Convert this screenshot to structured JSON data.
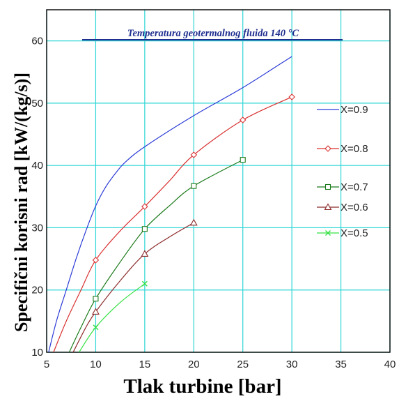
{
  "chart_data": {
    "type": "line",
    "title": "Temperatura geotermalnog fluida 140 °C",
    "xlabel": "Tlak turbine [bar]",
    "ylabel": "Specifični korisni rad [kW/(kg/s)]",
    "xlim": [
      5,
      40
    ],
    "ylim": [
      10,
      65
    ],
    "xticks": [
      "5",
      "10",
      "15",
      "20",
      "25",
      "30",
      "35",
      "40"
    ],
    "yticks": [
      "10",
      "20",
      "30",
      "40",
      "50",
      "60"
    ],
    "grid": true,
    "legend_position": "right",
    "series": [
      {
        "name": "X=0.9",
        "color": "#2a3ad6",
        "marker": "none",
        "curve": [
          [
            5.2,
            10
          ],
          [
            6,
            15
          ],
          [
            7,
            20
          ],
          [
            8,
            25
          ],
          [
            9,
            29.5
          ],
          [
            10,
            33.5
          ],
          [
            11,
            36.5
          ],
          [
            12,
            38.7
          ],
          [
            13,
            40.5
          ],
          [
            15,
            43
          ],
          [
            20,
            48
          ],
          [
            25,
            52.5
          ],
          [
            30,
            57.5
          ]
        ],
        "points": []
      },
      {
        "name": "X=0.8",
        "color": "#d93030",
        "marker": "diamond",
        "curve": [
          [
            5.7,
            10
          ],
          [
            7,
            15
          ],
          [
            8.5,
            20
          ],
          [
            10,
            24.8
          ],
          [
            12.5,
            29.5
          ],
          [
            15,
            33.4
          ],
          [
            17.5,
            37.5
          ],
          [
            20,
            41.7
          ],
          [
            25,
            47.3
          ],
          [
            30,
            51
          ]
        ],
        "points": [
          [
            10,
            24.8
          ],
          [
            15,
            33.4
          ],
          [
            20,
            41.7
          ],
          [
            25,
            47.3
          ],
          [
            30,
            51
          ]
        ]
      },
      {
        "name": "X=0.7",
        "color": "#1a7a1a",
        "marker": "square",
        "curve": [
          [
            7.3,
            10
          ],
          [
            8.5,
            14
          ],
          [
            10,
            18.6
          ],
          [
            12.5,
            24.5
          ],
          [
            15,
            29.8
          ],
          [
            17.5,
            33.5
          ],
          [
            20,
            36.7
          ],
          [
            25,
            40.9
          ]
        ],
        "points": [
          [
            10,
            18.6
          ],
          [
            15,
            29.8
          ],
          [
            20,
            36.7
          ],
          [
            25,
            40.9
          ]
        ]
      },
      {
        "name": "X=0.6",
        "color": "#8b2a2a",
        "marker": "triangle",
        "curve": [
          [
            7.7,
            10
          ],
          [
            9,
            14
          ],
          [
            10,
            16.5
          ],
          [
            12.5,
            21.5
          ],
          [
            15,
            25.8
          ],
          [
            17.5,
            28.5
          ],
          [
            20,
            30.8
          ]
        ],
        "points": [
          [
            10,
            16.5
          ],
          [
            15,
            25.8
          ],
          [
            20,
            30.8
          ]
        ]
      },
      {
        "name": "X=0.5",
        "color": "#33e040",
        "marker": "x",
        "curve": [
          [
            8.3,
            10
          ],
          [
            10,
            14
          ],
          [
            12.5,
            18
          ],
          [
            15,
            21
          ]
        ],
        "points": [
          [
            10,
            14
          ],
          [
            15,
            21
          ]
        ]
      }
    ]
  }
}
